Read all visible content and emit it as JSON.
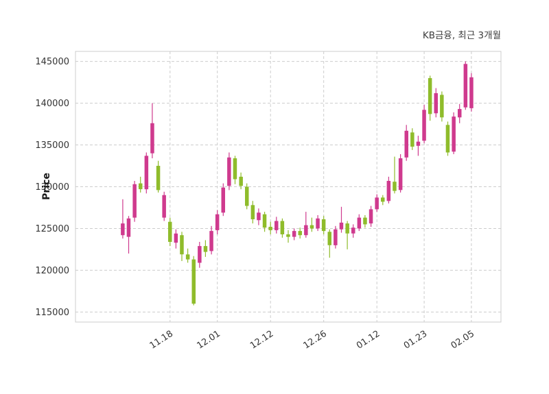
{
  "chart_data": {
    "type": "candlestick",
    "title": "KB금융, 최근 3개월",
    "ylabel": "Price",
    "ylim": [
      113800,
      146200
    ],
    "yticks": [
      115000,
      120000,
      125000,
      130000,
      135000,
      140000,
      145000
    ],
    "xlim": [
      -8,
      64
    ],
    "xticks": [
      {
        "i": 8,
        "label": "11.18"
      },
      {
        "i": 16,
        "label": "12.01"
      },
      {
        "i": 25,
        "label": "12.12"
      },
      {
        "i": 34,
        "label": "12.26"
      },
      {
        "i": 43,
        "label": "01.12"
      },
      {
        "i": 51,
        "label": "01.23"
      },
      {
        "i": 59,
        "label": "02.05"
      }
    ],
    "up_color": "#cf3a8e",
    "down_color": "#8fbc2b",
    "grid_color": "#cccccc",
    "border_color": "#cccccc",
    "tick_color": "#333333",
    "candles_ohlc_legend": [
      "open",
      "high",
      "low",
      "close"
    ],
    "candles_ohlc": [
      [
        124200,
        128500,
        123800,
        125600
      ],
      [
        124000,
        126500,
        122000,
        126200
      ],
      [
        126300,
        130700,
        125800,
        130300
      ],
      [
        130400,
        131200,
        129300,
        129700
      ],
      [
        129700,
        134100,
        129200,
        133700
      ],
      [
        134000,
        140000,
        133400,
        137600
      ],
      [
        132500,
        133100,
        129300,
        129600
      ],
      [
        126300,
        129400,
        125900,
        129000
      ],
      [
        125800,
        126300,
        122900,
        123400
      ],
      [
        123300,
        124900,
        122600,
        124400
      ],
      [
        124200,
        124600,
        121100,
        121900
      ],
      [
        121900,
        122600,
        120900,
        121300
      ],
      [
        121300,
        121700,
        115800,
        116000
      ],
      [
        120900,
        123400,
        120300,
        122900
      ],
      [
        122900,
        123600,
        121600,
        122200
      ],
      [
        122300,
        125300,
        121900,
        124700
      ],
      [
        124800,
        127200,
        124300,
        126700
      ],
      [
        126900,
        130400,
        126500,
        129900
      ],
      [
        130100,
        134100,
        129600,
        133500
      ],
      [
        133400,
        133700,
        130300,
        130900
      ],
      [
        131200,
        131700,
        129700,
        130100
      ],
      [
        130000,
        130400,
        127300,
        127700
      ],
      [
        127800,
        128300,
        125600,
        126100
      ],
      [
        126000,
        127400,
        125400,
        126900
      ],
      [
        126700,
        127000,
        124600,
        125100
      ],
      [
        125200,
        125800,
        124300,
        124800
      ],
      [
        124800,
        126400,
        124400,
        125900
      ],
      [
        125900,
        126200,
        123900,
        124300
      ],
      [
        124300,
        124800,
        123300,
        124000
      ],
      [
        124000,
        125000,
        123600,
        124700
      ],
      [
        124700,
        125100,
        123800,
        124200
      ],
      [
        124200,
        127000,
        123900,
        125400
      ],
      [
        125400,
        126300,
        124600,
        125000
      ],
      [
        125000,
        126600,
        124700,
        126200
      ],
      [
        126100,
        126500,
        124300,
        124700
      ],
      [
        124600,
        124900,
        121500,
        123000
      ],
      [
        123000,
        125300,
        122600,
        124900
      ],
      [
        124900,
        127600,
        124500,
        125700
      ],
      [
        125600,
        125900,
        122500,
        124400
      ],
      [
        124400,
        125500,
        123900,
        125100
      ],
      [
        125000,
        126700,
        124700,
        126300
      ],
      [
        126300,
        126600,
        125100,
        125500
      ],
      [
        125600,
        127700,
        125200,
        127300
      ],
      [
        127300,
        129100,
        127000,
        128700
      ],
      [
        128700,
        129000,
        127800,
        128200
      ],
      [
        128300,
        131200,
        128000,
        130700
      ],
      [
        130600,
        133600,
        129200,
        129500
      ],
      [
        129600,
        133900,
        129300,
        133400
      ],
      [
        133500,
        137400,
        133100,
        136700
      ],
      [
        136500,
        137000,
        134400,
        134800
      ],
      [
        134900,
        136100,
        133700,
        135400
      ],
      [
        135500,
        139800,
        135200,
        139200
      ],
      [
        143000,
        143300,
        137900,
        138700
      ],
      [
        138800,
        141800,
        138300,
        141200
      ],
      [
        141000,
        141400,
        137800,
        138300
      ],
      [
        137400,
        137800,
        133700,
        134100
      ],
      [
        134200,
        138900,
        133900,
        138400
      ],
      [
        138300,
        139900,
        137600,
        139300
      ],
      [
        139500,
        145000,
        139200,
        144700
      ],
      [
        139400,
        143600,
        139000,
        143100
      ]
    ]
  }
}
